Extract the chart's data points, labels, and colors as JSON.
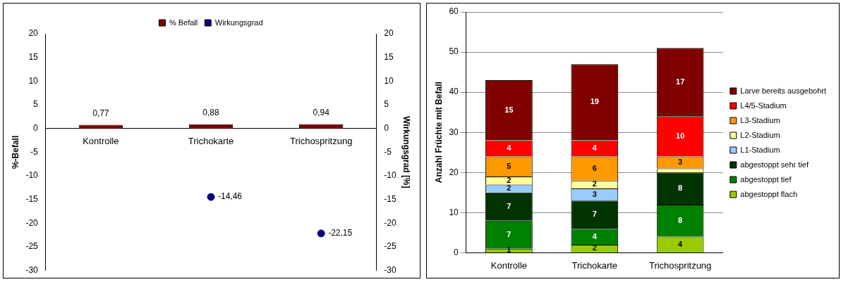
{
  "chart_data": [
    {
      "type": "bar",
      "categories": [
        "Kontrolle",
        "Trichokarte",
        "Trichospritzung"
      ],
      "ylabel": "%-Befall",
      "y2label": "Wirkungsgrad [%]",
      "ylim": [
        -30,
        20
      ],
      "yticks": [
        -30,
        -25,
        -20,
        -15,
        -10,
        -5,
        0,
        5,
        10,
        15,
        20
      ],
      "y2lim": [
        -30,
        20
      ],
      "y2ticks": [
        -30,
        -25,
        -20,
        -15,
        -10,
        -5,
        0,
        5,
        10,
        15,
        20
      ],
      "grid": false,
      "legend": "top",
      "marker": "circle",
      "series": [
        {
          "name": "% Befall",
          "type": "bar",
          "color": "#800000",
          "values": [
            0.77,
            0.88,
            0.94
          ],
          "value_labels": [
            "0,77",
            "0,88",
            "0,94"
          ]
        },
        {
          "name": "Wirkungsgrad",
          "type": "scatter",
          "axis": "y2",
          "color": "#000080",
          "values": [
            null,
            -14.46,
            -22.15
          ],
          "value_labels": [
            null,
            "-14,46",
            "-22,15"
          ]
        }
      ]
    },
    {
      "type": "bar",
      "stacked": true,
      "categories": [
        "Kontrolle",
        "Trichokarte",
        "Trichospritzung"
      ],
      "ylabel": "Anzahl Früchte mit Befall",
      "ylim": [
        0,
        60
      ],
      "yticks": [
        0,
        10,
        20,
        30,
        40,
        50,
        60
      ],
      "grid": "y",
      "legend": "right",
      "series": [
        {
          "name": "abgestoppt flach",
          "color": "#99cc00",
          "values": [
            1,
            2,
            4
          ],
          "value_labels": [
            "1",
            "2",
            "4"
          ]
        },
        {
          "name": "abgestoppt tief",
          "color": "#008000",
          "values": [
            7,
            4,
            8
          ],
          "value_labels": [
            "7",
            "4",
            "8"
          ]
        },
        {
          "name": "abgestoppt sehr tief",
          "color": "#003300",
          "values": [
            7,
            7,
            8
          ],
          "value_labels": [
            "7",
            "7",
            "8"
          ]
        },
        {
          "name": "L1-Stadium",
          "color": "#99ccff",
          "values": [
            2,
            3,
            0
          ],
          "value_labels": [
            "2",
            "3",
            null
          ]
        },
        {
          "name": "L2-Stadium",
          "color": "#ffff99",
          "values": [
            2,
            2,
            1
          ],
          "value_labels": [
            "2",
            "2",
            null
          ]
        },
        {
          "name": "L3-Stadium",
          "color": "#ff9900",
          "values": [
            5,
            6,
            3
          ],
          "value_labels": [
            "5",
            "6",
            "3"
          ]
        },
        {
          "name": "L4/5-Stadium",
          "color": "#ff0000",
          "values": [
            4,
            4,
            10
          ],
          "value_labels": [
            "4",
            "4",
            "10"
          ]
        },
        {
          "name": "Larve bereits ausgebohrt",
          "color": "#800000",
          "values": [
            15,
            19,
            17
          ],
          "value_labels": [
            "15",
            "19",
            "17"
          ]
        }
      ]
    }
  ]
}
